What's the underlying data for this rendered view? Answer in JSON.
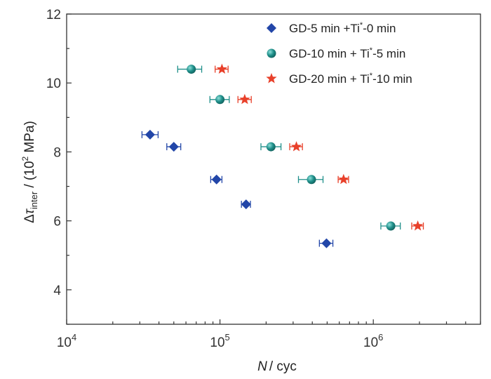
{
  "chart_data": {
    "type": "scatter",
    "title": "",
    "xlabel": {
      "italic": "N",
      "rest": "/ cyc"
    },
    "ylabel": {
      "delta": "Δ",
      "tau": "τ",
      "sub": "inter",
      "rest1": " / (10",
      "sup": "2",
      "rest2": " MPa)"
    },
    "x_scale": "log",
    "xlim": [
      10000,
      5000000
    ],
    "ylim": [
      3,
      12
    ],
    "x_ticks": [
      {
        "value": 10000,
        "base": "10",
        "exp": "4"
      },
      {
        "value": 100000,
        "base": "10",
        "exp": "5"
      },
      {
        "value": 1000000,
        "base": "10",
        "exp": "6"
      }
    ],
    "y_ticks": [
      {
        "value": 4,
        "label": "4"
      },
      {
        "value": 6,
        "label": "6"
      },
      {
        "value": 8,
        "label": "8"
      },
      {
        "value": 10,
        "label": "10"
      },
      {
        "value": 12,
        "label": "12"
      }
    ],
    "grid": false,
    "legend_position": "top-right",
    "series": [
      {
        "name": "GD-5 min +Ti*-0 min",
        "legend": {
          "a": "GD-5 min +Ti",
          "sup": "*",
          "b": "-0 min"
        },
        "marker": "diamond",
        "color": "#2246a8",
        "points": [
          {
            "x": 35000,
            "y": 8.5,
            "xerr": [
              31000,
              39500
            ]
          },
          {
            "x": 50000,
            "y": 8.15,
            "xerr": [
              45000,
              55500
            ]
          },
          {
            "x": 95000,
            "y": 7.2,
            "xerr": [
              87000,
              103000
            ]
          },
          {
            "x": 148000,
            "y": 6.48,
            "xerr": [
              138000,
              158000
            ]
          },
          {
            "x": 495000,
            "y": 5.35,
            "xerr": [
              445000,
              545000
            ]
          }
        ]
      },
      {
        "name": "GD-10 min + Ti*-5 min",
        "legend": {
          "a": "GD-10 min + Ti",
          "sup": "*",
          "b": "-5 min"
        },
        "marker": "circle",
        "color": "#1f8f8a",
        "points": [
          {
            "x": 65000,
            "y": 10.4,
            "xerr": [
              53000,
              76000
            ]
          },
          {
            "x": 100000,
            "y": 9.52,
            "xerr": [
              86000,
              115000
            ]
          },
          {
            "x": 215000,
            "y": 8.15,
            "xerr": [
              185000,
              250000
            ]
          },
          {
            "x": 395000,
            "y": 7.2,
            "xerr": [
              325000,
              470000
            ]
          },
          {
            "x": 1300000,
            "y": 5.85,
            "xerr": [
              1120000,
              1500000
            ]
          }
        ]
      },
      {
        "name": "GD-20 min + Ti*-10 min",
        "legend": {
          "a": "GD-20 min + Ti",
          "sup": "*",
          "b": "-10 min"
        },
        "marker": "star",
        "color": "#e8402a",
        "points": [
          {
            "x": 103000,
            "y": 10.4,
            "xerr": [
              93000,
              113000
            ]
          },
          {
            "x": 145000,
            "y": 9.52,
            "xerr": [
              131000,
              160000
            ]
          },
          {
            "x": 315000,
            "y": 8.15,
            "xerr": [
              285000,
              345000
            ]
          },
          {
            "x": 640000,
            "y": 7.2,
            "xerr": [
              590000,
              690000
            ]
          },
          {
            "x": 1950000,
            "y": 5.85,
            "xerr": [
              1780000,
              2120000
            ]
          }
        ]
      }
    ]
  }
}
